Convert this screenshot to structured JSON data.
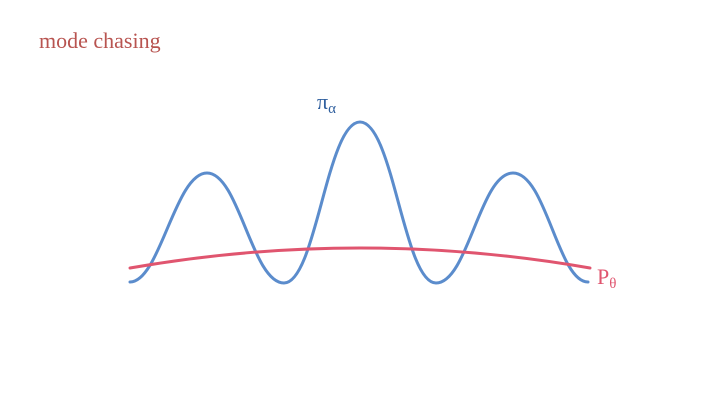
{
  "title": "mode chasing",
  "labels": {
    "pi": {
      "symbol": "π",
      "subscript": "α"
    },
    "p": {
      "symbol": "P",
      "subscript": "θ"
    }
  },
  "colors": {
    "title": "#b85450",
    "pi_curve": "#5b8ccc",
    "pi_label": "#2f5f9e",
    "p_curve": "#e0556f"
  }
}
